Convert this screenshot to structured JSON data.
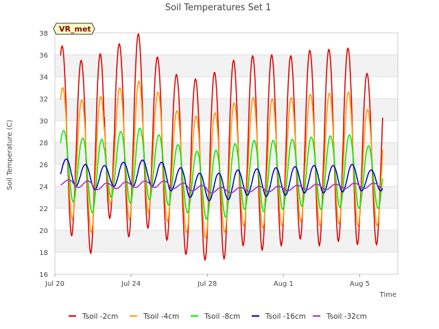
{
  "chart_data": {
    "type": "line",
    "title": "Soil Temperatures Set 1",
    "xlabel": "Time",
    "ylabel": "Soil Temperature (C)",
    "badge": "VR_met",
    "x_range": [
      "2023-07-20",
      "2023-08-07"
    ],
    "ylim": [
      16,
      38
    ],
    "y_ticks": [
      16,
      18,
      20,
      22,
      24,
      26,
      28,
      30,
      32,
      34,
      36,
      38
    ],
    "x_ticks": [
      {
        "date": "2023-07-20",
        "label": "Jul 20"
      },
      {
        "date": "2023-07-24",
        "label": "Jul 24"
      },
      {
        "date": "2023-07-28",
        "label": "Jul 28"
      },
      {
        "date": "2023-08-01",
        "label": "Aug 1"
      },
      {
        "date": "2023-08-05",
        "label": "Aug 5"
      }
    ],
    "grid": true,
    "banded_background": true,
    "legend_position": "bottom",
    "colors": {
      "Tsoil -2cm": "#dd0000",
      "Tsoil -4cm": "#ff9900",
      "Tsoil -8cm": "#00ee00",
      "Tsoil -16cm": "#0000cc",
      "Tsoil -32cm": "#9933cc"
    },
    "series": [
      {
        "name": "Tsoil -2cm",
        "daily_max": [
          36.8,
          35.5,
          36.1,
          37.0,
          37.9,
          35.8,
          34.2,
          33.8,
          34.4,
          35.5,
          35.9,
          36.0,
          35.9,
          36.4,
          36.5,
          36.6,
          34.3
        ],
        "daily_min": [
          20.5,
          19.5,
          17.9,
          21.1,
          19.4,
          20.2,
          19.1,
          17.8,
          17.3,
          17.4,
          18.6,
          18.2,
          18.6,
          19.2,
          18.6,
          19.0,
          18.7
        ]
      },
      {
        "name": "Tsoil -4cm",
        "daily_max": [
          33.0,
          31.9,
          32.2,
          33.0,
          33.6,
          32.6,
          30.9,
          30.4,
          30.7,
          31.6,
          32.1,
          32.0,
          32.1,
          32.4,
          32.5,
          32.6,
          31.0
        ],
        "daily_min": [
          22.0,
          21.0,
          19.8,
          22.4,
          21.0,
          21.6,
          20.8,
          19.8,
          19.3,
          19.8,
          20.4,
          20.2,
          20.4,
          20.8,
          20.4,
          20.6,
          20.4
        ]
      },
      {
        "name": "Tsoil -8cm",
        "daily_max": [
          29.1,
          28.4,
          28.3,
          29.0,
          29.3,
          28.7,
          27.8,
          27.2,
          27.3,
          27.9,
          28.2,
          28.2,
          28.3,
          28.5,
          28.6,
          28.7,
          27.7
        ],
        "daily_min": [
          23.6,
          22.6,
          21.6,
          23.0,
          22.5,
          22.8,
          22.3,
          21.6,
          21.0,
          21.2,
          21.9,
          21.7,
          21.9,
          22.2,
          21.9,
          22.1,
          22.0
        ]
      },
      {
        "name": "Tsoil -16cm",
        "daily_max": [
          26.5,
          26.0,
          25.9,
          26.2,
          26.4,
          26.2,
          25.7,
          25.2,
          25.2,
          25.5,
          25.6,
          25.7,
          25.8,
          25.9,
          25.9,
          26.0,
          25.5
        ],
        "daily_min": [
          24.3,
          24.0,
          23.7,
          24.0,
          24.0,
          24.0,
          23.6,
          23.0,
          22.7,
          22.8,
          23.2,
          23.1,
          23.2,
          23.4,
          23.4,
          23.5,
          23.6
        ]
      },
      {
        "name": "Tsoil -32cm",
        "daily_max": [
          24.6,
          24.5,
          24.3,
          24.4,
          24.5,
          24.5,
          24.3,
          24.1,
          23.9,
          23.9,
          24.0,
          24.0,
          24.1,
          24.2,
          24.2,
          24.3,
          24.3
        ],
        "daily_min": [
          24.1,
          23.9,
          23.7,
          23.8,
          23.9,
          23.9,
          23.8,
          23.6,
          23.4,
          23.4,
          23.5,
          23.5,
          23.6,
          23.7,
          23.7,
          23.8,
          23.8
        ]
      }
    ]
  }
}
